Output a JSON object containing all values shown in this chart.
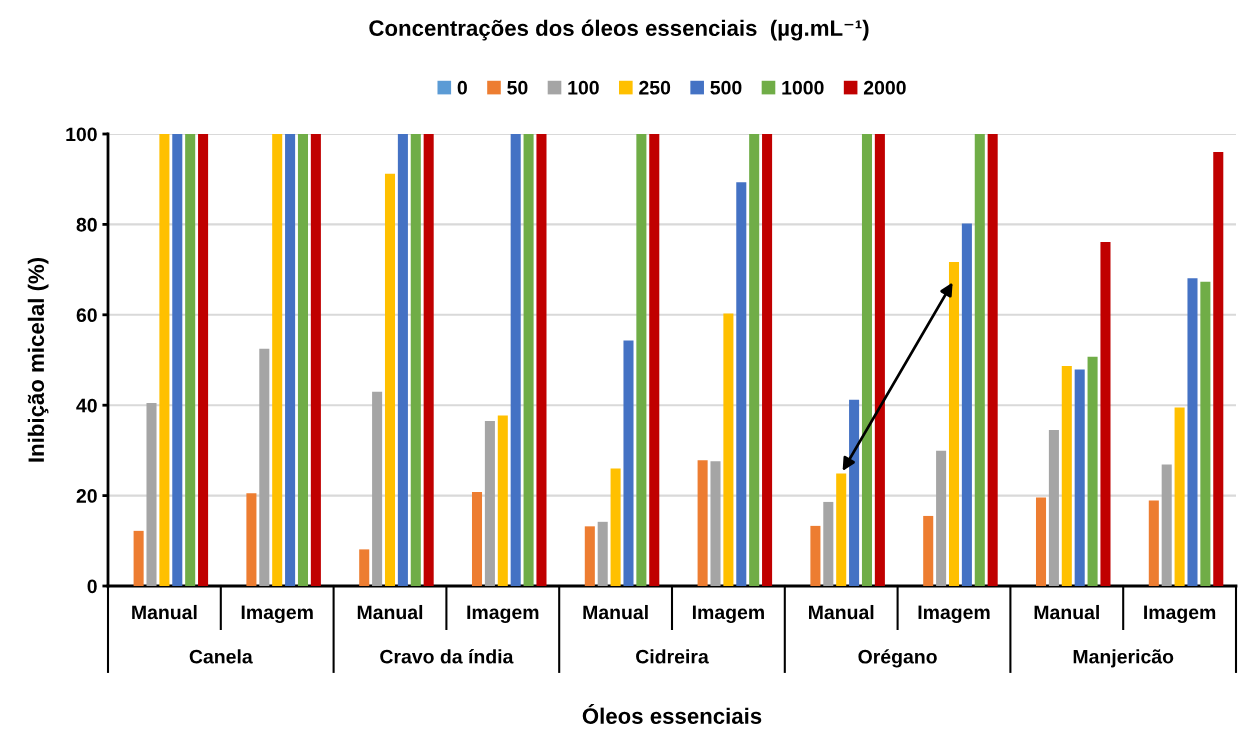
{
  "chart_data": {
    "type": "bar",
    "title": "Concentrações dos óleos essenciais  (µg.mL⁻¹)",
    "xlabel": "Óleos essenciais",
    "ylabel": "Inibição micelal (%)",
    "categories": [
      "Manual",
      "Imagem",
      "Manual",
      "Imagem",
      "Manual",
      "Imagem",
      "Manual",
      "Imagem",
      "Manual",
      "Imagem"
    ],
    "annotations": [
      "Canela",
      "Cravo da índia",
      "Cidreira",
      "Orégano",
      "Manjericão"
    ],
    "series": [
      {
        "name": "0",
        "color": "#5b9bd5",
        "values": [
          0,
          0,
          0,
          0,
          0,
          0,
          0,
          0,
          0,
          0
        ]
      },
      {
        "name": "50",
        "color": "#ed7d31",
        "values": [
          12.2,
          20.5,
          8.1,
          20.8,
          13.2,
          27.8,
          13.3,
          15.5,
          19.6,
          18.9
        ]
      },
      {
        "name": "100",
        "color": "#a5a5a5",
        "values": [
          40.5,
          52.5,
          43,
          36.5,
          14.2,
          27.6,
          18.6,
          29.9,
          34.5,
          26.9
        ]
      },
      {
        "name": "250",
        "color": "#ffc000",
        "values": [
          100,
          100,
          91.2,
          37.7,
          26,
          60.3,
          24.9,
          71.7,
          48.7,
          39.5
        ]
      },
      {
        "name": "500",
        "color": "#4472c4",
        "values": [
          100,
          100,
          100,
          100,
          54.3,
          89.3,
          41.2,
          80.2,
          47.9,
          68.1
        ]
      },
      {
        "name": "1000",
        "color": "#70ad47",
        "values": [
          100,
          100,
          100,
          100,
          100,
          100,
          100,
          100,
          50.7,
          67.3
        ]
      },
      {
        "name": "2000",
        "color": "#c00000",
        "values": [
          100,
          100,
          100,
          100,
          100,
          100,
          100,
          100,
          76.1,
          96
        ]
      }
    ],
    "ylim": [
      0,
      100
    ],
    "yticks": [
      0,
      20,
      40,
      60,
      80,
      100
    ],
    "grid": "y",
    "legend": "top"
  }
}
